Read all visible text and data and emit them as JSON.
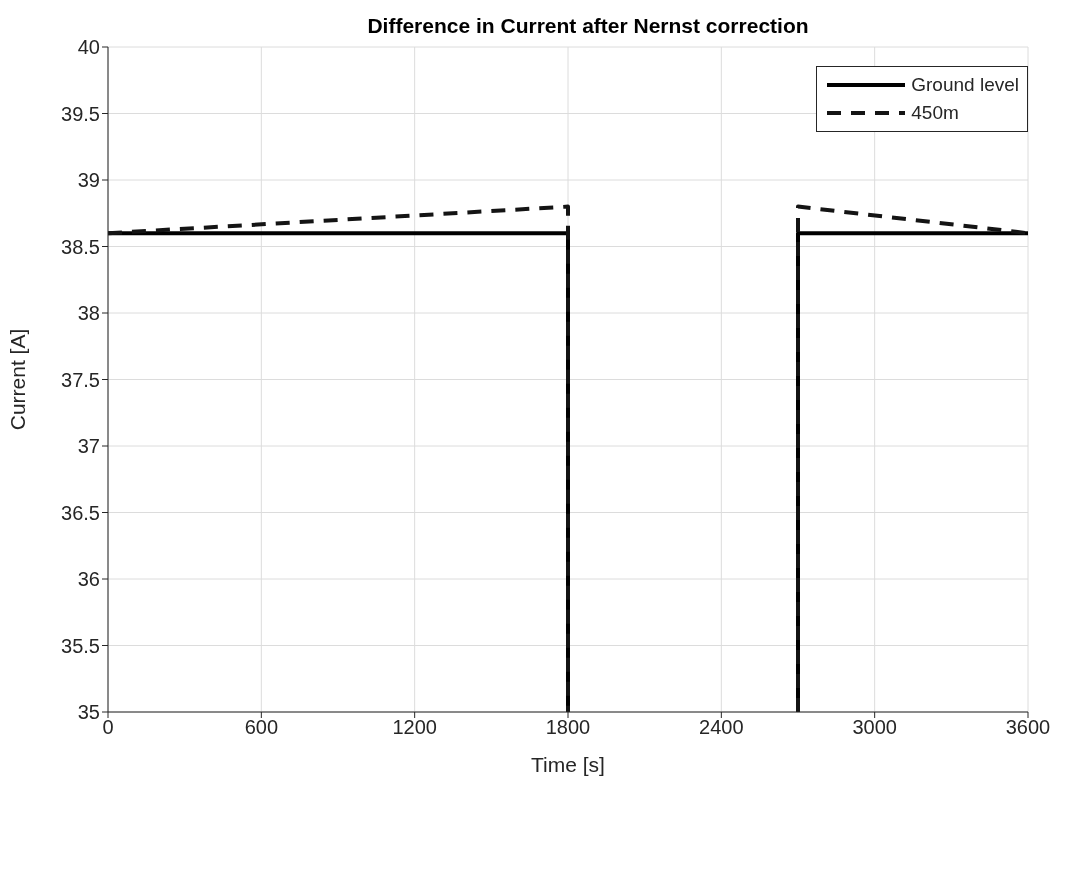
{
  "chart_data": {
    "type": "line",
    "title": "Difference in Current after Nernst correction",
    "xlabel": "Time [s]",
    "ylabel": "Current [A]",
    "xlim": [
      0,
      3600
    ],
    "xticks": [
      0,
      600,
      1200,
      1800,
      2400,
      3000,
      3600
    ],
    "ylim": [
      35,
      40
    ],
    "yticks": [
      35,
      35.5,
      36,
      36.5,
      37,
      37.5,
      38,
      38.5,
      39,
      39.5,
      40
    ],
    "grid": true,
    "legend": "top right",
    "marker": "none",
    "series": [
      {
        "name": "Ground level",
        "color": "#000000",
        "line_style": "solid",
        "x": [
          0,
          1800,
          1800,
          2250,
          2700,
          2700,
          3600
        ],
        "values": [
          38.6,
          38.6,
          35,
          null,
          35,
          38.6,
          38.6
        ]
      },
      {
        "name": "450m",
        "color": "#141414",
        "line_style": "dashed",
        "x": [
          0,
          1800,
          1800,
          2250,
          2700,
          2700,
          3600
        ],
        "values": [
          38.6,
          38.8,
          35,
          null,
          35,
          38.8,
          38.6
        ]
      }
    ]
  }
}
